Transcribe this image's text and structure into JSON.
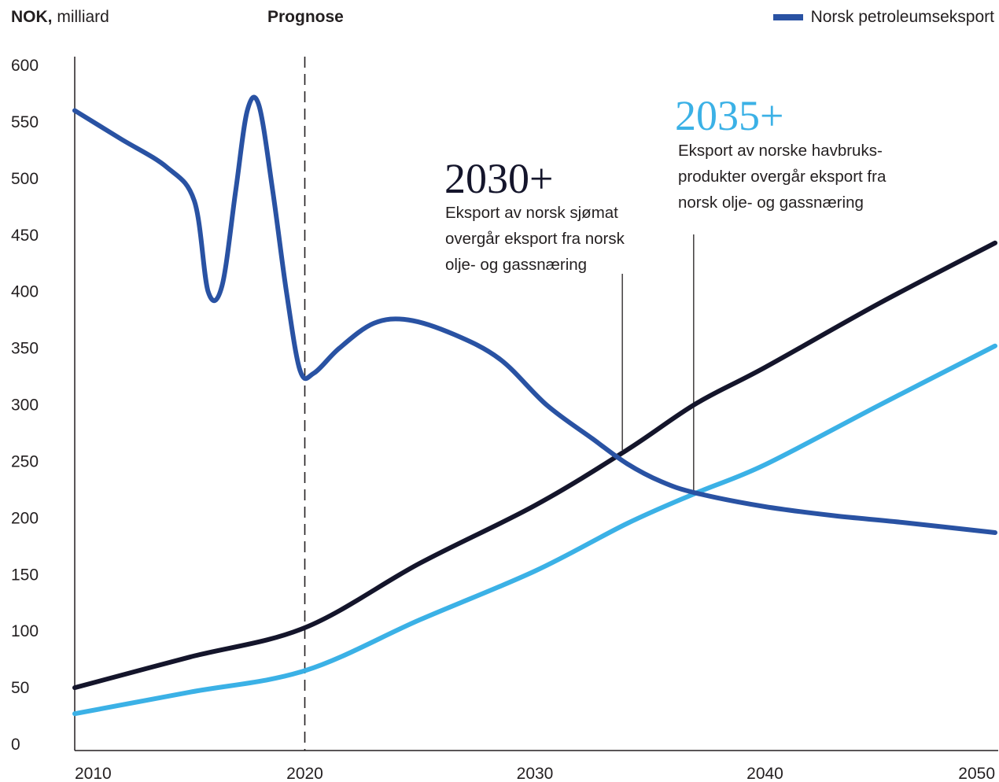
{
  "chart_data": {
    "type": "line",
    "ylabel_bold": "NOK,",
    "ylabel_rest": " milliard",
    "forecast_label": "Prognose",
    "forecast_start": 2020,
    "xlim": [
      2010,
      2050
    ],
    "ylim": [
      0,
      600
    ],
    "y_ticks": [
      0,
      50,
      100,
      150,
      200,
      250,
      300,
      350,
      400,
      450,
      500,
      550,
      600
    ],
    "x_ticks": [
      2010,
      2020,
      2030,
      2040,
      2050
    ],
    "legend": [
      {
        "name": "Norsk petroleumseksport",
        "color": "#2952a3"
      }
    ],
    "legend_placement": "top-right",
    "grid": false,
    "series": [
      {
        "id": "petroleum",
        "name": "Norsk petroleumseksport",
        "color": "#2952a3",
        "points": [
          [
            2010,
            560
          ],
          [
            2012,
            535
          ],
          [
            2014,
            510
          ],
          [
            2015.2,
            480
          ],
          [
            2015.8,
            400
          ],
          [
            2016.4,
            405
          ],
          [
            2017,
            490
          ],
          [
            2017.5,
            560
          ],
          [
            2018,
            565
          ],
          [
            2018.6,
            490
          ],
          [
            2019.2,
            400
          ],
          [
            2019.8,
            330
          ],
          [
            2020.4,
            328
          ],
          [
            2021.5,
            350
          ],
          [
            2023,
            372
          ],
          [
            2024.5,
            375
          ],
          [
            2026.5,
            362
          ],
          [
            2028.5,
            340
          ],
          [
            2030.5,
            300
          ],
          [
            2032.5,
            270
          ],
          [
            2034,
            248
          ],
          [
            2035.5,
            232
          ],
          [
            2037,
            222
          ],
          [
            2040,
            210
          ],
          [
            2043,
            202
          ],
          [
            2046,
            196
          ],
          [
            2050,
            187
          ]
        ]
      },
      {
        "id": "seafood",
        "name": "",
        "color": "#14152b",
        "points": [
          [
            2010,
            50
          ],
          [
            2015,
            77
          ],
          [
            2020,
            103
          ],
          [
            2025,
            160
          ],
          [
            2030,
            211
          ],
          [
            2034,
            260
          ],
          [
            2037,
            301
          ],
          [
            2040,
            333
          ],
          [
            2045,
            390
          ],
          [
            2050,
            443
          ]
        ]
      },
      {
        "id": "aquaculture",
        "name": "",
        "color": "#3bb1e6",
        "points": [
          [
            2010,
            27
          ],
          [
            2015,
            46
          ],
          [
            2020,
            65
          ],
          [
            2025,
            110
          ],
          [
            2030,
            153
          ],
          [
            2034,
            195
          ],
          [
            2037,
            222
          ],
          [
            2040,
            247
          ],
          [
            2045,
            300
          ],
          [
            2050,
            352
          ]
        ]
      }
    ],
    "annotations": [
      {
        "year_label": "2030+",
        "x": 2033.8,
        "y": 260,
        "text": [
          "Eksport av norsk sjømat",
          "overgår eksport fra norsk",
          "olje- og gassnæring"
        ]
      },
      {
        "year_label": "2035+",
        "x": 2036.9,
        "y": 222,
        "text": [
          "Eksport av norske havbruks-",
          "produkter overgår eksport fra",
          "norsk olje- og gassnæring"
        ]
      }
    ],
    "colors": {
      "axis": "#231f20",
      "annotation_2030": "#14152b",
      "annotation_2035": "#3bb1e6"
    }
  }
}
